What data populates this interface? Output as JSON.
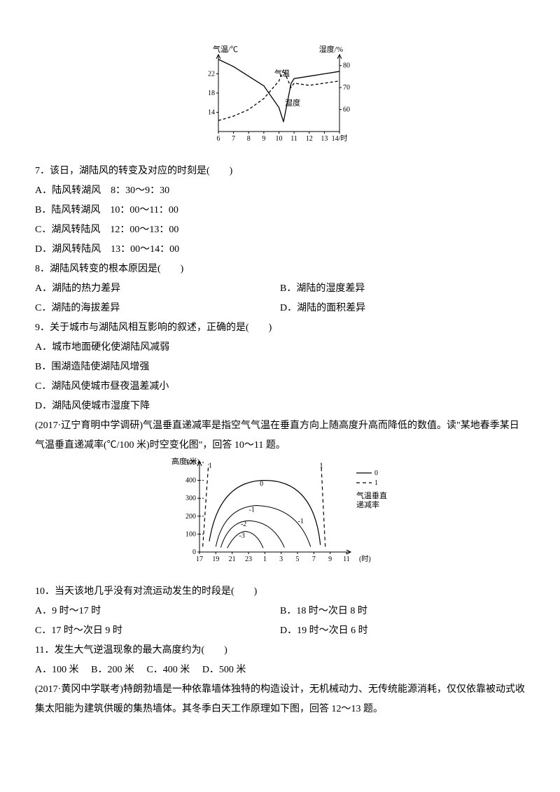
{
  "chart1": {
    "type": "line",
    "y_left_label": "气温/℃",
    "y_right_label": "湿度/%",
    "series_temp_label": "气温",
    "series_hum_label": "湿度",
    "x_label_suffix": "14/时",
    "bg": "#ffffff",
    "axis_color": "#000000",
    "temp_color": "#000000",
    "hum_color": "#000000",
    "x_ticks": [
      "6",
      "7",
      "8",
      "9",
      "10",
      "11",
      "12",
      "13",
      "14/时"
    ],
    "y_left_ticks": [
      "14",
      "18",
      "22"
    ],
    "y_right_ticks": [
      "60",
      "70",
      "80"
    ],
    "temp_points": [
      [
        6,
        25
      ],
      [
        7,
        23.5
      ],
      [
        8,
        21.5
      ],
      [
        9,
        19.5
      ],
      [
        10,
        15
      ],
      [
        10.3,
        12
      ],
      [
        10.8,
        20
      ],
      [
        11,
        21
      ],
      [
        12,
        21.5
      ],
      [
        13,
        22
      ],
      [
        14,
        22.5
      ]
    ],
    "hum_points": [
      [
        6,
        55
      ],
      [
        7,
        57
      ],
      [
        8,
        60
      ],
      [
        9,
        65
      ],
      [
        10,
        73
      ],
      [
        10.3,
        78
      ],
      [
        10.8,
        70
      ],
      [
        11,
        72
      ],
      [
        12,
        71
      ],
      [
        13,
        72
      ],
      [
        14,
        73
      ]
    ]
  },
  "q7": {
    "stem": "7．该日，湖陆风的转变及对应的时刻是(　　)",
    "a": "A．陆风转湖风　8：30～9：30",
    "b": "B．陆风转湖风　10：00～11：00",
    "c": "C．湖风转陆风　12：00～13：00",
    "d": "D．湖风转陆风　13：00～14：00"
  },
  "q8": {
    "stem": "8．湖陆风转变的根本原因是(　　)",
    "a": "A．湖陆的热力差异",
    "b": "B．湖陆的湿度差异",
    "c": "C．湖陆的海拔差异",
    "d": "D．湖陆的面积差异"
  },
  "q9": {
    "stem": "9．关于城市与湖陆风相互影响的叙述，正确的是(　　)",
    "a": "A．城市地面硬化使湖陆风减弱",
    "b": "B．围湖造陆使湖陆风增强",
    "c": "C．湖陆风使城市昼夜温差减小",
    "d": "D．湖陆风使城市湿度下降"
  },
  "passage2": "(2017·辽宁育明中学调研)气温垂直递减率是指空气气温在垂直方向上随高度升高而降低的数值。读\"某地春季某日气温垂直递减率(℃/100 米)时空变化图\"，回答 10～11 题。",
  "chart2": {
    "type": "contour",
    "y_label": "高度(米)",
    "bg": "#ffffff",
    "axis_color": "#000000",
    "contour_color": "#000000",
    "x_ticks": [
      "17",
      "19",
      "21",
      "23",
      "1",
      "3",
      "5",
      "7",
      "9",
      "11"
    ],
    "x_suffix": "(时)",
    "y_ticks": [
      "0",
      "100",
      "200",
      "300",
      "400",
      "500"
    ],
    "legend_solid_label": "0",
    "legend_dash_label": "1",
    "legend_title": "气温垂直\n递减率",
    "center_labels": [
      "-1",
      "-2",
      "-3",
      "-1",
      "0",
      "1",
      "1",
      "0"
    ]
  },
  "q10": {
    "stem": "10．当天该地几乎没有对流运动发生的时段是(　　)",
    "a": "A．9 时～17 时",
    "b": "B．18 时～次日 8 时",
    "c": "C．17 时～次日 9 时",
    "d": "D．19 时～次日 6 时"
  },
  "q11": {
    "stem": "11．发生大气逆温现象的最大高度约为(　　)",
    "a": "A．100 米",
    "b": "B．200 米",
    "c": "C．400 米",
    "d": "D．500 米"
  },
  "passage3": "(2017·黄冈中学联考)特朗勃墙是一种依靠墙体独特的构造设计，无机械动力、无传统能源消耗，仅仅依靠被动式收集太阳能为建筑供暖的集热墙体。其冬季白天工作原理如下图，回答 12～13 题。"
}
